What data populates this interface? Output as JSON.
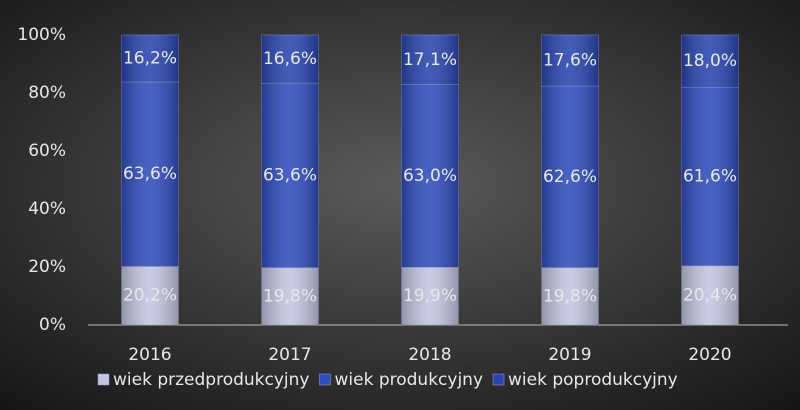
{
  "chart_data": {
    "type": "stacked_bar",
    "categories": [
      "2016",
      "2017",
      "2018",
      "2019",
      "2020"
    ],
    "series": [
      {
        "name": "wiek przedprodukcyjny",
        "color": "#c3c5e0",
        "values": [
          20.2,
          19.8,
          19.9,
          19.8,
          20.4
        ],
        "value_labels": [
          "20,2%",
          "19,8%",
          "19,9%",
          "19,8%",
          "20,4%"
        ]
      },
      {
        "name": "wiek produkcyjny",
        "color": "#2f4dbd",
        "values": [
          63.6,
          63.6,
          63.0,
          62.6,
          61.6
        ],
        "value_labels": [
          "63,6%",
          "63,6%",
          "63,0%",
          "62,6%",
          "61,6%"
        ]
      },
      {
        "name": "wiek poprodukcyjny",
        "color": "#2a45b0",
        "values": [
          16.2,
          16.6,
          17.1,
          17.6,
          18.0
        ],
        "value_labels": [
          "16,2%",
          "16,6%",
          "17,1%",
          "17,6%",
          "18,0%"
        ]
      }
    ],
    "ylim": [
      0,
      100
    ],
    "yticks": [
      {
        "value": 0,
        "label": "0%"
      },
      {
        "value": 20,
        "label": "20%"
      },
      {
        "value": 40,
        "label": "40%"
      },
      {
        "value": 60,
        "label": "60%"
      },
      {
        "value": 80,
        "label": "80%"
      },
      {
        "value": 100,
        "label": "100%"
      }
    ],
    "legend": "bottom"
  }
}
